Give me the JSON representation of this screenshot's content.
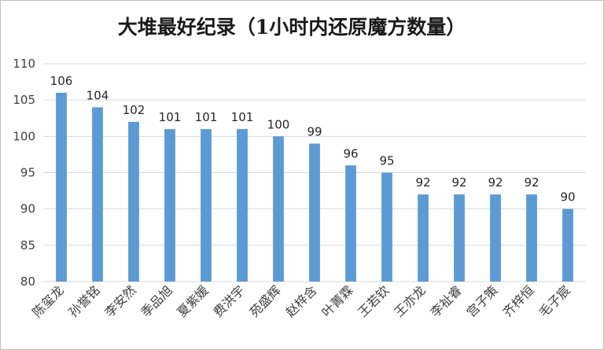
{
  "chart_data": {
    "type": "bar",
    "title": "大堆最好纪录（1小时内还原魔方数量）",
    "categories": [
      "陈玺龙",
      "孙誉铭",
      "李安然",
      "季品旭",
      "夏紫媛",
      "费洪宇",
      "苑盛辉",
      "赵梓含",
      "叶菁霖",
      "王若钦",
      "王亦龙",
      "李祉睿",
      "宫子策",
      "齐梓恒",
      "毛子宸"
    ],
    "values": [
      106,
      104,
      102,
      101,
      101,
      101,
      100,
      99,
      96,
      95,
      92,
      92,
      92,
      92,
      90
    ],
    "ylim": [
      80,
      110
    ],
    "yticks": [
      80,
      85,
      90,
      95,
      100,
      105,
      110
    ],
    "xlabel": "",
    "ylabel": "",
    "grid": true,
    "bar_color": "#5b9bd5"
  }
}
